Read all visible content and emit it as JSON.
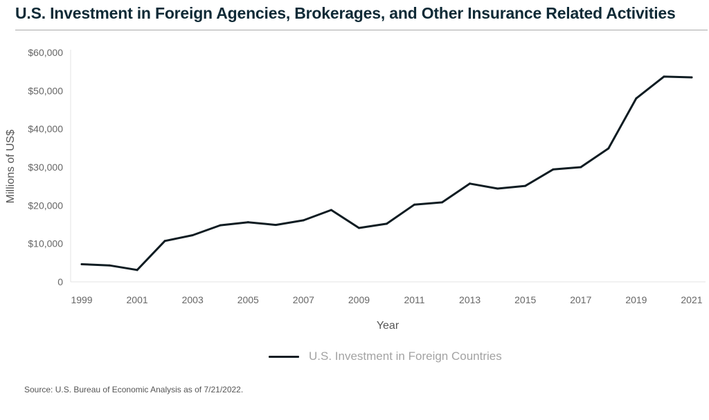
{
  "title": "U.S. Investment in Foreign Agencies, Brokerages, and Other Insurance Related Activities",
  "source": "Source: U.S. Bureau of Economic Analysis as of 7/21/2022.",
  "colors": {
    "line": "#0f1c22",
    "title": "#0f2a36",
    "legend_text": "#a3a3a3"
  },
  "chart_data": {
    "type": "line",
    "title": "U.S. Investment in Foreign Agencies, Brokerages, and Other Insurance Related Activities",
    "xlabel": "Year",
    "ylabel": "Millions of US$",
    "x": [
      1999,
      2000,
      2001,
      2002,
      2003,
      2004,
      2005,
      2006,
      2007,
      2008,
      2009,
      2010,
      2011,
      2012,
      2013,
      2014,
      2015,
      2016,
      2017,
      2018,
      2019,
      2020,
      2021
    ],
    "x_tick_labels": [
      "1999",
      "2001",
      "2003",
      "2005",
      "2007",
      "2009",
      "2011",
      "2013",
      "2015",
      "2017",
      "2019",
      "2021"
    ],
    "y_tick_labels": [
      "0",
      "$10,000",
      "$20,000",
      "$30,000",
      "$40,000",
      "$50,000",
      "$60,000"
    ],
    "y_ticks": [
      0,
      10000,
      20000,
      30000,
      40000,
      50000,
      60000
    ],
    "ylim": [
      0,
      60000
    ],
    "xlim": [
      1999,
      2021
    ],
    "grid": false,
    "legend_position": "bottom",
    "series": [
      {
        "name": "U.S. Investment in Foreign Countries",
        "values": [
          4600,
          4300,
          3100,
          10700,
          12200,
          14800,
          15600,
          14900,
          16100,
          18800,
          14100,
          15200,
          20200,
          20800,
          25700,
          24400,
          25100,
          29400,
          30000,
          34900,
          48000,
          53700,
          53500
        ]
      }
    ]
  }
}
